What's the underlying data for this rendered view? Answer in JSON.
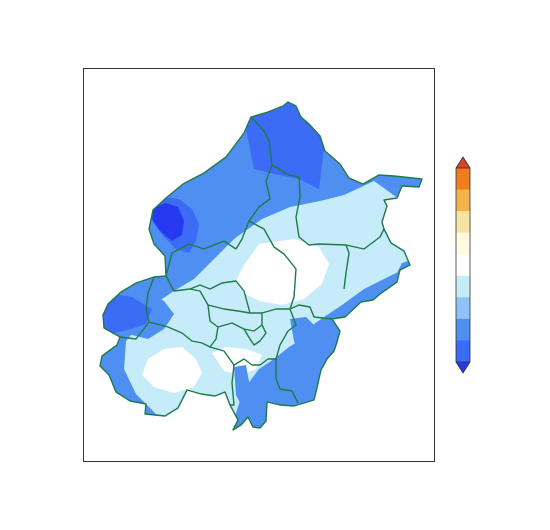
{
  "map": {
    "region_outline_color": "#1f7a4a",
    "background_color": "#ffffff",
    "frame_color": "#333333"
  },
  "colorbar": {
    "orientation": "vertical",
    "extend": "both",
    "tick_labels_shown": false,
    "bins_top_to_bottom": [
      {
        "color": "#e0402a"
      },
      {
        "color": "#f07d1f"
      },
      {
        "color": "#f3b24a"
      },
      {
        "color": "#f8e3a3"
      },
      {
        "color": "#fefbe0"
      },
      {
        "color": "#ffffff"
      },
      {
        "color": "#c6ecfa"
      },
      {
        "color": "#8fc3f5"
      },
      {
        "color": "#4f8ff1"
      },
      {
        "color": "#3c6bf5"
      },
      {
        "color": "#2739f0"
      }
    ]
  }
}
